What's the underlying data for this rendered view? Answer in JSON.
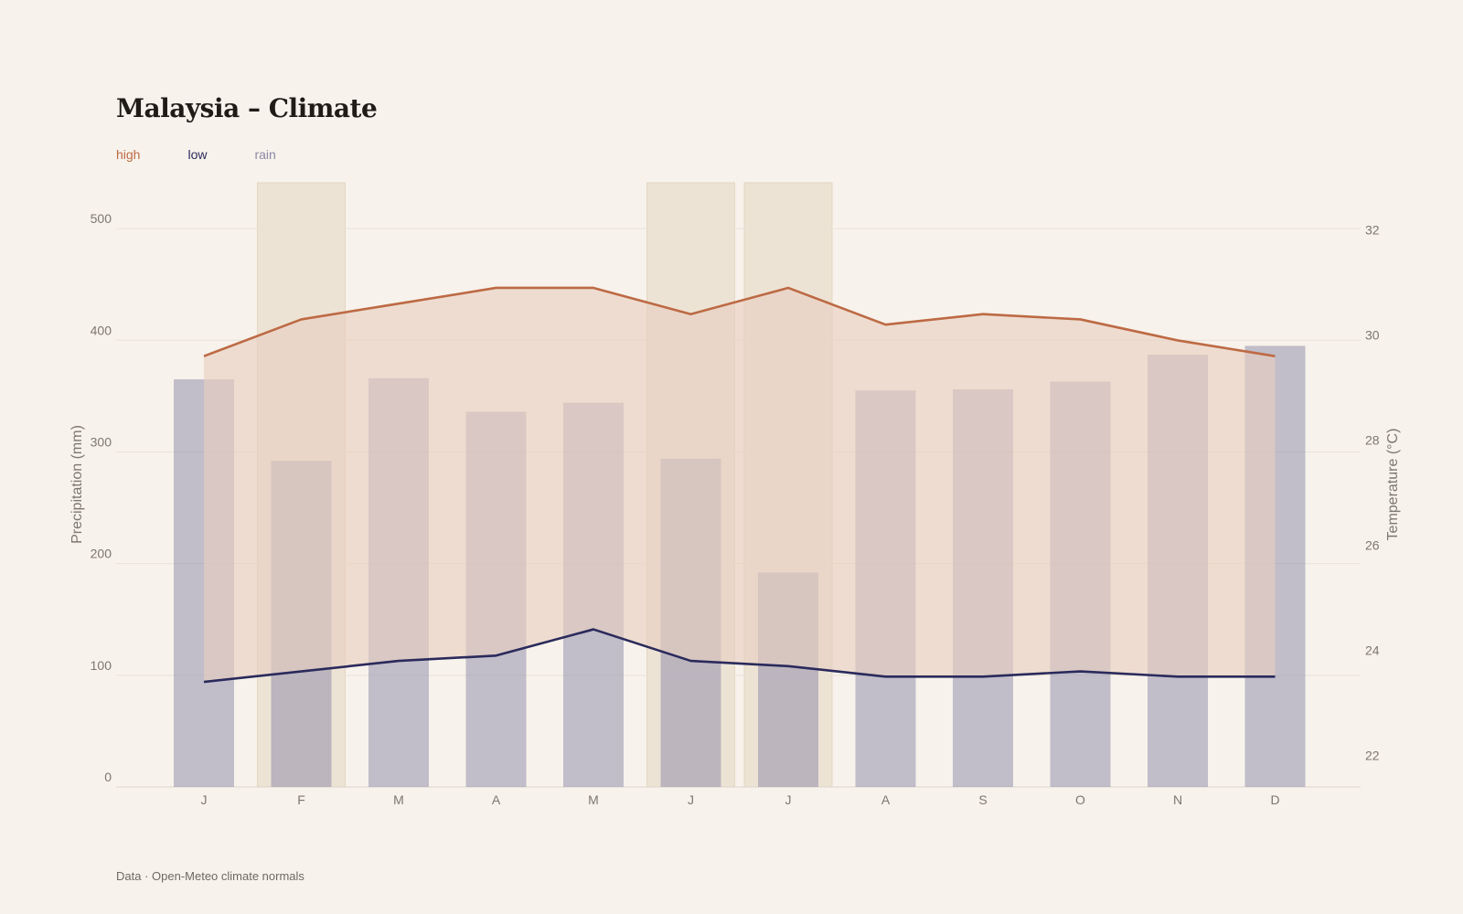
{
  "chart_data": {
    "type": "bar+line",
    "title": "Malaysia – Climate",
    "categories": [
      "J",
      "F",
      "M",
      "A",
      "M",
      "J",
      "J",
      "A",
      "S",
      "O",
      "N",
      "D"
    ],
    "series": [
      {
        "name": "high",
        "axis": "right",
        "type": "line",
        "values": [
          29.6,
          30.3,
          30.6,
          30.9,
          30.9,
          30.4,
          30.9,
          30.2,
          30.4,
          30.3,
          29.9,
          29.6
        ]
      },
      {
        "name": "low",
        "axis": "right",
        "type": "line",
        "values": [
          23.4,
          23.6,
          23.8,
          23.9,
          24.4,
          23.8,
          23.7,
          23.5,
          23.5,
          23.6,
          23.5,
          23.5
        ]
      },
      {
        "name": "rain",
        "axis": "left",
        "type": "bar",
        "values": [
          365,
          292,
          366,
          336,
          344,
          294,
          192,
          355,
          356,
          363,
          387,
          395
        ]
      }
    ],
    "highlighted_months": [
      1,
      5,
      6
    ],
    "ylabel_left": "Precipitation (mm)",
    "ylabel_right": "Temperature (°C)",
    "ylim_left": [
      0,
      541
    ],
    "ylim_right": [
      21.4,
      32.9
    ],
    "yticks_left": [
      "0",
      "100",
      "200",
      "300",
      "400",
      "500"
    ],
    "yticks_right": [
      "22",
      "24",
      "26",
      "28",
      "30",
      "32"
    ],
    "colors": {
      "high": "#bd6a44",
      "low": "#2a2a5c",
      "rain": "#8c88a8",
      "band": "#e8cfc0",
      "highlight": "#ede3d4"
    },
    "legend": [
      {
        "label": "high",
        "color": "#bd6a44"
      },
      {
        "label": "low",
        "color": "#2a2a5c"
      },
      {
        "label": "rain",
        "color": "#8c88a8"
      }
    ],
    "source": "Data · Open-Meteo climate normals"
  }
}
